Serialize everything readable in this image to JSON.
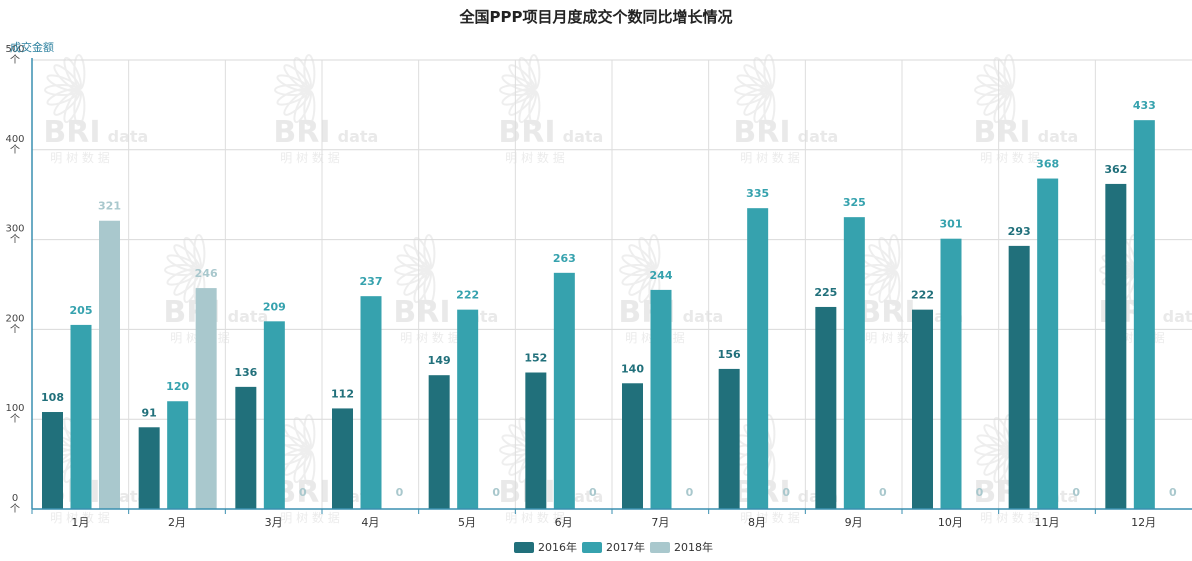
{
  "chart_data": {
    "type": "bar",
    "title": "全国PPP项目月度成交个数同比增长情况",
    "ylabel": "成交金额",
    "ylim": [
      0,
      500
    ],
    "yticks": [
      "0\n个",
      "100\n个",
      "200\n个",
      "300\n个",
      "400\n个",
      "500\n个"
    ],
    "categories": [
      "1月",
      "2月",
      "3月",
      "4月",
      "5月",
      "6月",
      "7月",
      "8月",
      "9月",
      "10月",
      "11月",
      "12月"
    ],
    "series": [
      {
        "name": "2016年",
        "color": "#21707b",
        "values": [
          108,
          91,
          136,
          112,
          149,
          152,
          140,
          156,
          225,
          222,
          293,
          362
        ]
      },
      {
        "name": "2017年",
        "color": "#36a2ae",
        "values": [
          205,
          120,
          209,
          237,
          222,
          263,
          244,
          335,
          325,
          301,
          368,
          433
        ]
      },
      {
        "name": "2018年",
        "color": "#a9c8cd",
        "values": [
          321,
          246,
          0,
          0,
          0,
          0,
          0,
          0,
          0,
          0,
          0,
          0
        ]
      }
    ],
    "grid": true,
    "legend_position": "bottom-center"
  },
  "watermark": {
    "main": "BRI",
    "suffix": "data",
    "sub": "明 树 数 据"
  }
}
